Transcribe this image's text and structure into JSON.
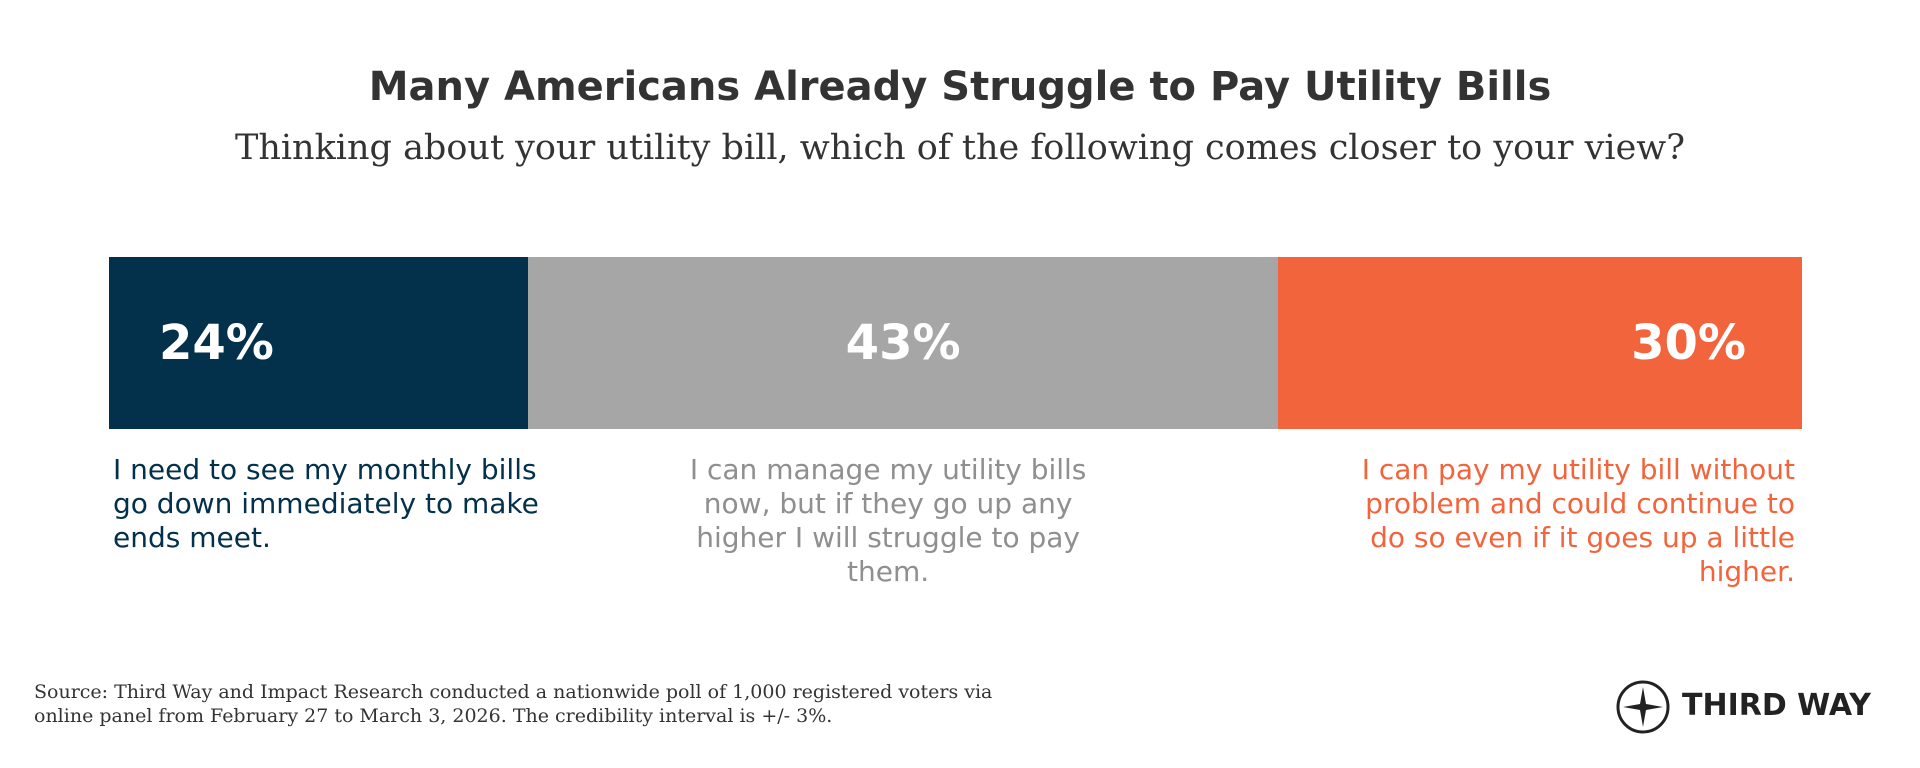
{
  "chart_data": {
    "type": "stacked-bar",
    "title": "Many Americans Already Struggle to Pay Utility Bills",
    "subtitle": "Thinking about your utility bill, which of the following comes closer to your view?",
    "series": [
      {
        "name": "I need to see my monthly bills go down immediately to make ends meet.",
        "color": "#03304a",
        "values": [
          24
        ],
        "value_labels": [
          "24%"
        ]
      },
      {
        "name": "I can manage my utility bills now, but if they go up any higher I will struggle to pay them.",
        "color": "#a6a6a6",
        "values": [
          43
        ],
        "value_labels": [
          "43%"
        ]
      },
      {
        "name": "I can pay my utility bill without problem and could continue to do so even if it goes up a little higher.",
        "color": "#f2643c",
        "values": [
          30
        ],
        "value_labels": [
          "30%"
        ]
      }
    ],
    "source": "Source: Third Way and Impact Research conducted a nationwide poll of 1,000 registered voters via online panel from February 27 to March 3, 2026. The credibility interval is +/- 3%.",
    "logo": "THIRD WAY"
  }
}
